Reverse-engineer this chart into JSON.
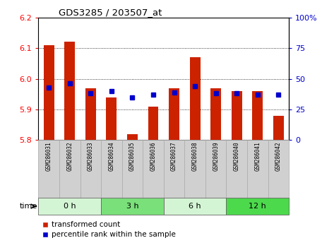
{
  "title": "GDS3285 / 203507_at",
  "samples": [
    "GSM286031",
    "GSM286032",
    "GSM286033",
    "GSM286034",
    "GSM286035",
    "GSM286036",
    "GSM286037",
    "GSM286038",
    "GSM286039",
    "GSM286040",
    "GSM286041",
    "GSM286042"
  ],
  "red_values": [
    6.11,
    6.12,
    5.97,
    5.94,
    5.82,
    5.91,
    5.97,
    6.07,
    5.97,
    5.96,
    5.96,
    5.88
  ],
  "blue_pct": [
    43,
    46,
    38,
    40,
    35,
    37,
    39,
    44,
    38,
    38,
    37,
    37
  ],
  "ylim": [
    5.8,
    6.2
  ],
  "y_left_ticks": [
    5.8,
    5.9,
    6.0,
    6.1,
    6.2
  ],
  "y_right_ticks": [
    0,
    25,
    50,
    75,
    100
  ],
  "bar_bottom": 5.8,
  "bar_color": "#cc2200",
  "blue_color": "#0000cc",
  "groups": [
    {
      "label": "0 h",
      "start": 0,
      "end": 3,
      "color": "#d4f5d4"
    },
    {
      "label": "3 h",
      "start": 3,
      "end": 6,
      "color": "#7ae07a"
    },
    {
      "label": "6 h",
      "start": 6,
      "end": 9,
      "color": "#d4f5d4"
    },
    {
      "label": "12 h",
      "start": 9,
      "end": 12,
      "color": "#4cd94c"
    }
  ],
  "time_label": "time",
  "legend_red": "transformed count",
  "legend_blue": "percentile rank within the sample",
  "label_box_color": "#d0d0d0",
  "label_box_edge": "#aaaaaa"
}
